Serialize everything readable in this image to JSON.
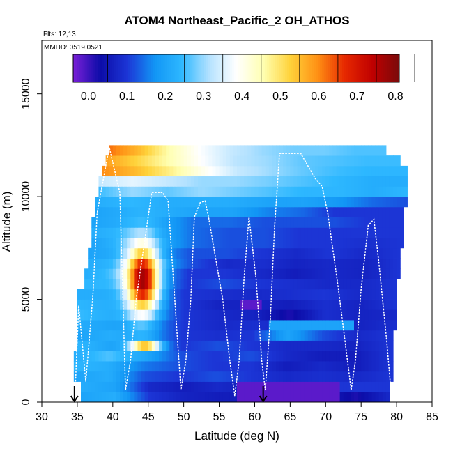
{
  "title": "ATOM4 Northeast_Pacific_2 OH_ATHOS",
  "flights_label": "Flts: 12,13",
  "dates_label": "MMDD: 0519,0521",
  "chart_data": {
    "type": "heatmap",
    "title": "ATOM4 Northeast_Pacific_2 OH_ATHOS",
    "xlabel": "Latitude (deg N)",
    "ylabel": "Altitude (m)",
    "xlim": [
      30,
      85
    ],
    "ylim": [
      0,
      17600
    ],
    "xticks": [
      30,
      35,
      40,
      45,
      50,
      55,
      60,
      65,
      70,
      75,
      80,
      85
    ],
    "yticks": [
      0,
      5000,
      10000,
      15000
    ],
    "colorbar": {
      "min": -0.04,
      "max": 0.81,
      "ticks": [
        0.0,
        0.1,
        0.2,
        0.3,
        0.4,
        0.5,
        0.6,
        0.7,
        0.8
      ],
      "tick_labels": [
        "0.0",
        "0.1",
        "0.2",
        "0.3",
        "0.4",
        "0.5",
        "0.6",
        "0.7",
        "0.8"
      ],
      "colors": [
        "#7a1fd8",
        "#0c0ca8",
        "#1c36d6",
        "#1296f5",
        "#2eb8ff",
        "#b4e2ff",
        "#ffffff",
        "#ffffb0",
        "#ffd23a",
        "#ff8f14",
        "#e62800",
        "#c00000",
        "#7a0b0b"
      ],
      "placement": "top"
    },
    "altitude_layers_m": [
      0,
      500,
      1000,
      1500,
      2000,
      2500,
      3000,
      3500,
      4000,
      4500,
      5000,
      5500,
      6000,
      6500,
      7000,
      7500,
      8000,
      8500,
      9000,
      9500,
      10000,
      10500,
      11000,
      11500,
      12000,
      12500
    ],
    "layer_lat_extent": [
      [
        35.5,
        79
      ],
      [
        35.5,
        79
      ],
      [
        34.5,
        79.5
      ],
      [
        34.5,
        79.5
      ],
      [
        34.5,
        79.5
      ],
      [
        35,
        79.5
      ],
      [
        35,
        79.5
      ],
      [
        35,
        80
      ],
      [
        35,
        80
      ],
      [
        35,
        80
      ],
      [
        35,
        80
      ],
      [
        36,
        80
      ],
      [
        36,
        80.5
      ],
      [
        36.5,
        80.5
      ],
      [
        36.5,
        80.5
      ],
      [
        37,
        81
      ],
      [
        37,
        81
      ],
      [
        37,
        81
      ],
      [
        37.5,
        81
      ],
      [
        37.5,
        81.5
      ],
      [
        38,
        81.5
      ],
      [
        38,
        81.5
      ],
      [
        38.5,
        81.5
      ],
      [
        39,
        80.5
      ],
      [
        39.5,
        78.5
      ]
    ],
    "layer_values": [
      [
        0.2,
        0.22,
        0.1,
        0.07,
        0.06,
        0.06,
        0.04,
        0.07,
        0.02,
        0.08
      ],
      [
        0.22,
        0.2,
        0.08,
        0.06,
        0.08,
        0.06,
        0.08,
        0.1,
        0.1,
        0.1
      ],
      [
        0.2,
        0.22,
        0.12,
        0.1,
        0.12,
        0.1,
        0.08,
        0.09,
        0.08,
        0.1
      ],
      [
        0.24,
        0.22,
        0.15,
        0.12,
        0.1,
        0.1,
        0.06,
        0.08,
        0.06,
        0.1
      ],
      [
        0.22,
        0.26,
        0.2,
        0.12,
        0.1,
        0.12,
        0.08,
        0.06,
        0.06,
        0.1
      ],
      [
        0.24,
        0.2,
        0.18,
        0.1,
        0.12,
        0.1,
        0.08,
        0.08,
        0.07,
        0.1
      ],
      [
        0.2,
        0.22,
        0.17,
        0.1,
        0.09,
        0.1,
        0.2,
        0.12,
        0.08,
        0.1
      ],
      [
        0.22,
        0.2,
        0.16,
        0.1,
        0.08,
        0.09,
        0.08,
        0.08,
        0.07,
        0.09
      ],
      [
        0.25,
        0.22,
        0.18,
        0.1,
        0.08,
        0.07,
        0.02,
        0.09,
        0.07,
        0.08
      ],
      [
        0.24,
        0.22,
        0.18,
        0.1,
        0.07,
        0.07,
        0.06,
        0.09,
        0.07,
        0.1
      ],
      [
        0.22,
        0.22,
        0.18,
        0.1,
        0.09,
        0.08,
        0.09,
        0.1,
        0.08,
        0.1
      ],
      [
        0.24,
        0.24,
        0.18,
        0.1,
        0.12,
        0.1,
        0.09,
        0.08,
        0.08,
        0.1
      ],
      [
        0.22,
        0.26,
        0.18,
        0.1,
        0.1,
        0.08,
        0.06,
        0.08,
        0.07,
        0.1
      ],
      [
        0.22,
        0.24,
        0.2,
        0.12,
        0.08,
        0.09,
        0.07,
        0.08,
        0.07,
        0.1
      ],
      [
        0.2,
        0.22,
        0.18,
        0.12,
        0.12,
        0.1,
        0.08,
        0.1,
        0.08,
        0.1
      ],
      [
        0.2,
        0.24,
        0.2,
        0.14,
        0.12,
        0.12,
        0.1,
        0.1,
        0.09,
        0.1
      ],
      [
        0.22,
        0.24,
        0.2,
        0.14,
        0.12,
        0.12,
        0.1,
        0.1,
        0.1,
        0.1
      ],
      [
        0.2,
        0.22,
        0.2,
        0.14,
        0.14,
        0.12,
        0.12,
        0.12,
        0.1,
        0.1
      ],
      [
        0.2,
        0.22,
        0.22,
        0.2,
        0.2,
        0.16,
        0.14,
        0.1,
        0.1,
        0.1
      ],
      [
        0.22,
        0.24,
        0.22,
        0.22,
        0.22,
        0.2,
        0.2,
        0.18,
        0.14,
        0.12
      ],
      [
        0.25,
        0.3,
        0.27,
        0.3,
        0.28,
        0.26,
        0.24,
        0.24,
        0.22,
        0.24
      ],
      [
        0.33,
        0.36,
        0.33,
        0.3,
        0.3,
        0.28,
        0.26,
        0.24,
        0.22,
        0.22
      ],
      [
        0.6,
        0.55,
        0.48,
        0.4,
        0.33,
        0.3,
        0.27,
        0.25,
        0.24,
        0.24
      ],
      [
        0.58,
        0.52,
        0.45,
        0.38,
        0.32,
        0.3,
        0.27,
        0.26,
        0.25,
        0.25
      ],
      [
        0.62,
        0.55,
        0.45,
        0.38,
        0.33,
        0.3,
        0.28,
        0.28,
        0.26,
        0.26
      ]
    ],
    "features": [
      {
        "type": "plume",
        "lat": 44.2,
        "alt_m": 6000,
        "lat_halfwidth": 2.6,
        "alt_halfwidth_m": 1900,
        "peak": 0.78
      },
      {
        "type": "plume",
        "lat": 44.5,
        "alt_m": 2800,
        "lat_halfwidth": 2.4,
        "alt_halfwidth_m": 300,
        "peak": 0.55
      },
      {
        "type": "patch",
        "lat_range": [
          57.5,
          72
        ],
        "alt_range_m": [
          0,
          900
        ],
        "value": -0.02
      },
      {
        "type": "patch",
        "lat_range": [
          58,
          61
        ],
        "alt_range_m": [
          4600,
          4900
        ],
        "value": -0.02
      },
      {
        "type": "patch",
        "lat_range": [
          62,
          74
        ],
        "alt_range_m": [
          3700,
          4100
        ],
        "value": 0.2
      }
    ],
    "flight_track": [
      [
        34.7,
        600
      ],
      [
        35.2,
        4700
      ],
      [
        36.2,
        1000
      ],
      [
        37.2,
        5200
      ],
      [
        37.8,
        9200
      ],
      [
        39.5,
        12400
      ],
      [
        41,
        10200
      ],
      [
        41.8,
        600
      ],
      [
        42.5,
        2000
      ],
      [
        43.3,
        5000
      ],
      [
        45.5,
        10200
      ],
      [
        47,
        10200
      ],
      [
        47.8,
        9800
      ],
      [
        49.6,
        600
      ],
      [
        50.3,
        2000
      ],
      [
        51,
        5000
      ],
      [
        51.5,
        9000
      ],
      [
        52.3,
        9700
      ],
      [
        53,
        9800
      ],
      [
        53.5,
        9000
      ],
      [
        55.5,
        5000
      ],
      [
        56.5,
        2000
      ],
      [
        57.2,
        300
      ],
      [
        57.8,
        2000
      ],
      [
        58.5,
        6000
      ],
      [
        59.2,
        9000
      ],
      [
        60.2,
        6000
      ],
      [
        61,
        2000
      ],
      [
        61.5,
        600
      ],
      [
        62.2,
        4000
      ],
      [
        62.8,
        8500
      ],
      [
        63.5,
        12100
      ],
      [
        66.5,
        12100
      ],
      [
        68.5,
        10900
      ],
      [
        69.5,
        10500
      ],
      [
        70.3,
        9200
      ],
      [
        71.8,
        5500
      ],
      [
        73.6,
        600
      ],
      [
        74.2,
        2000
      ],
      [
        75,
        5500
      ],
      [
        76,
        8600
      ],
      [
        76.8,
        8900
      ],
      [
        77.5,
        6800
      ],
      [
        78.6,
        3000
      ],
      [
        79.2,
        600
      ]
    ],
    "markers": [
      {
        "type": "arrow",
        "lat": 34.6
      },
      {
        "type": "arrow",
        "lat": 61.2
      }
    ]
  }
}
